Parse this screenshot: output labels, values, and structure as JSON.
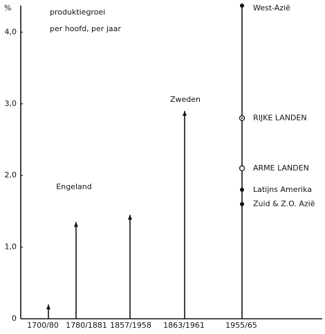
{
  "chart_data": {
    "type": "arrow-bar",
    "title": "produktiegroei",
    "subtitle": "per hoofd, per jaar",
    "y_label": "%",
    "categories": [
      "1700/80",
      "1780/1881",
      "1857/1958",
      "1863/1961",
      "1955/65"
    ],
    "values": [
      0.2,
      1.35,
      1.45,
      2.9,
      null
    ],
    "annotations": [
      {
        "text": "Engeland"
      },
      {
        "text": "Zweden"
      }
    ],
    "points": [
      {
        "label": "West-Azië",
        "value": 4.37,
        "marker": "filled"
      },
      {
        "label": "RIJKE LANDEN",
        "value": 2.8,
        "marker": "ring-dot"
      },
      {
        "label": "ARME LANDEN",
        "value": 2.1,
        "marker": "open"
      },
      {
        "label": "Latijns Amerika",
        "value": 1.8,
        "marker": "filled"
      },
      {
        "label": "Zuid & Z.O. Azië",
        "value": 1.6,
        "marker": "filled"
      }
    ],
    "color": "#111111",
    "ylim": [
      0,
      4.4
    ],
    "yticks": [
      0,
      {
        "value": 1,
        "label": "1,0"
      },
      {
        "value": 2,
        "label": "2,0"
      },
      {
        "value": 3,
        "label": "3,0"
      },
      {
        "value": 4,
        "label": "4,0"
      }
    ],
    "grid": false
  }
}
